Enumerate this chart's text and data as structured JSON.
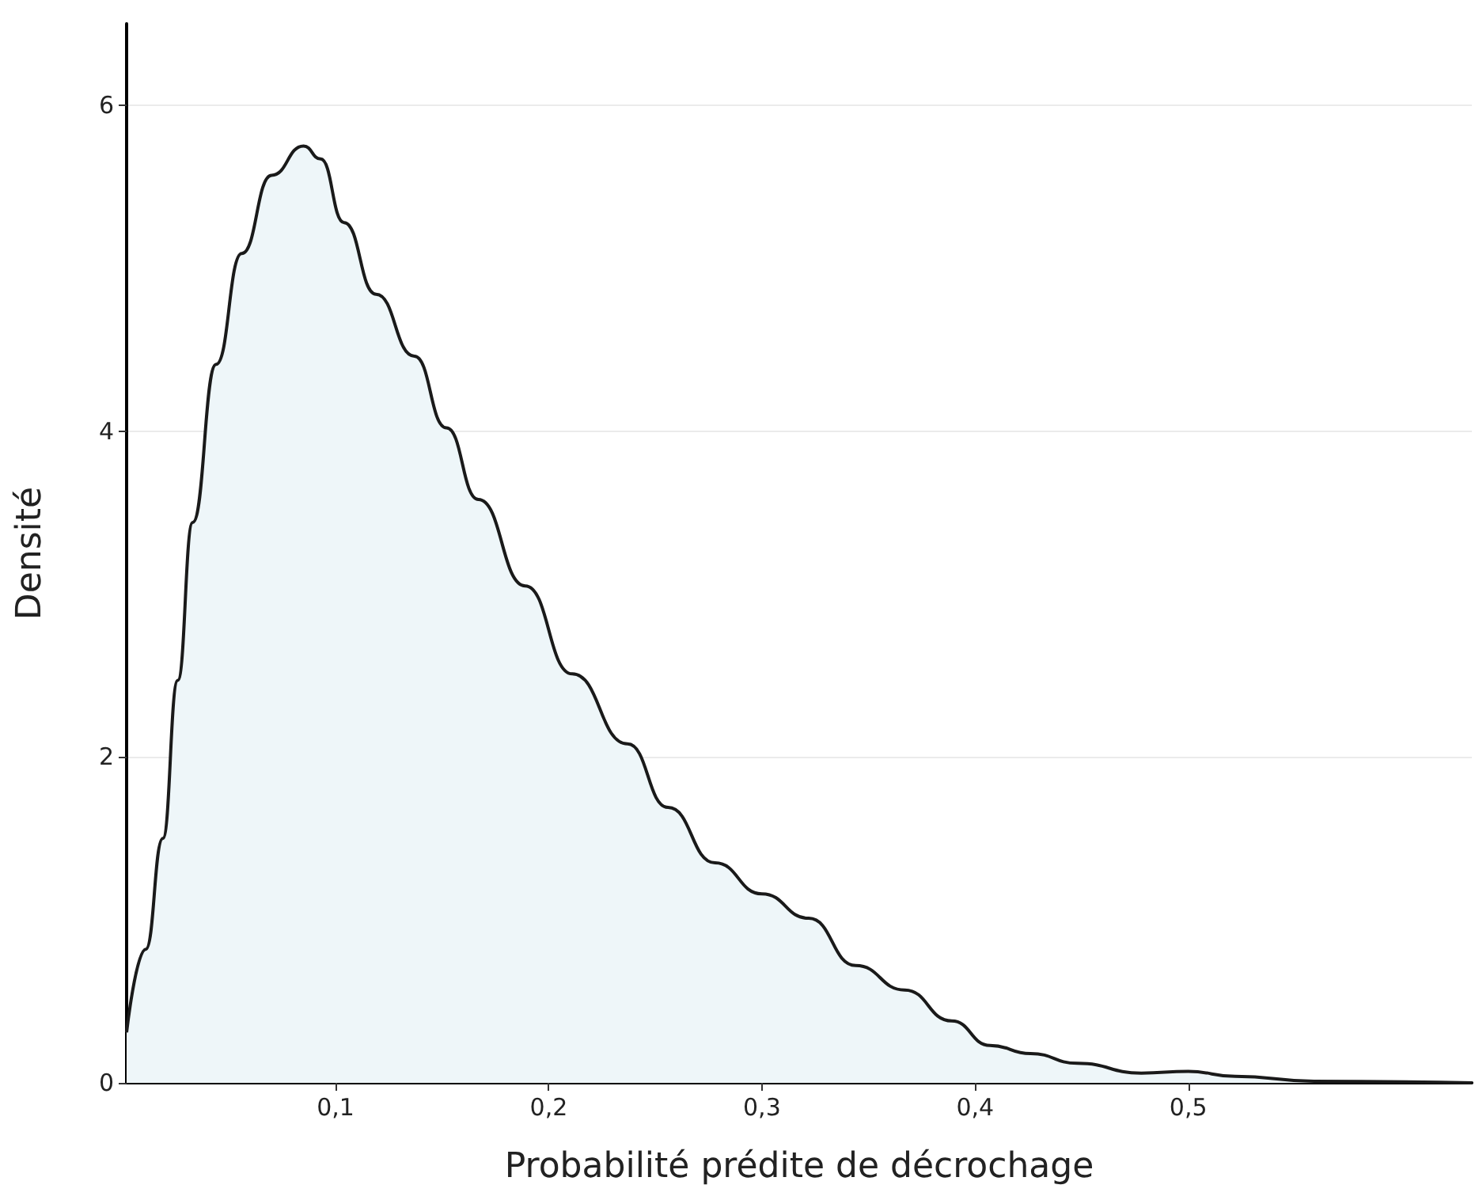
{
  "chart_data": {
    "type": "area",
    "xlabel": "Probabilité prédite de décrochage",
    "ylabel": "Densité",
    "xlim": [
      0.002,
      0.633
    ],
    "xticks": [
      {
        "value": 0.1,
        "label": "0,1"
      },
      {
        "value": 0.2,
        "label": "0,2"
      },
      {
        "value": 0.3,
        "label": "0,3"
      },
      {
        "value": 0.4,
        "label": "0,4"
      },
      {
        "value": 0.5,
        "label": "0,5"
      }
    ],
    "ylim": [
      0,
      6.5
    ],
    "yticks": [
      0,
      2,
      4,
      6
    ],
    "grid": "y",
    "marker": "none",
    "line_style": "solid",
    "series": [
      {
        "color": "#1a1a1a",
        "x": [
          0.002,
          0.011,
          0.019,
          0.026,
          0.033,
          0.044,
          0.056,
          0.07,
          0.085,
          0.093,
          0.104,
          0.119,
          0.137,
          0.152,
          0.167,
          0.189,
          0.211,
          0.237,
          0.256,
          0.278,
          0.3,
          0.322,
          0.344,
          0.367,
          0.389,
          0.407,
          0.426,
          0.448,
          0.478,
          0.5,
          0.522,
          0.559,
          0.633
        ],
        "values": [
          0.31,
          0.82,
          1.5,
          2.47,
          3.44,
          4.41,
          5.09,
          5.57,
          5.75,
          5.67,
          5.28,
          4.84,
          4.46,
          4.02,
          3.58,
          3.05,
          2.51,
          2.08,
          1.69,
          1.35,
          1.16,
          1.01,
          0.72,
          0.57,
          0.38,
          0.23,
          0.18,
          0.12,
          0.06,
          0.07,
          0.04,
          0.01,
          0
        ]
      }
    ]
  }
}
